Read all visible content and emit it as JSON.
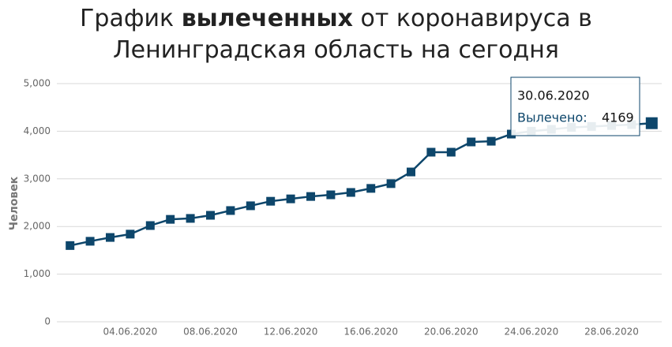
{
  "chart_data": {
    "type": "line",
    "title_parts": [
      "График",
      "вылеченных",
      "от коронавируса в",
      "Ленинградская область на сегодня"
    ],
    "y_label": "Человек",
    "categories": [
      null,
      null,
      null,
      "04.06.2020",
      null,
      null,
      null,
      "08.06.2020",
      null,
      null,
      null,
      "12.06.2020",
      null,
      null,
      null,
      "16.06.2020",
      null,
      null,
      null,
      "20.06.2020",
      null,
      null,
      null,
      "24.06.2020",
      null,
      null,
      null,
      "28.06.2020",
      null,
      null
    ],
    "series": [
      {
        "color": "#0d466b",
        "values": [
          1600,
          1690,
          1770,
          1840,
          2020,
          2150,
          2170,
          2235,
          2335,
          2435,
          2530,
          2580,
          2630,
          2665,
          2715,
          2800,
          2900,
          3145,
          3560,
          3560,
          3775,
          3790,
          3940,
          4000,
          4040,
          4080,
          4100,
          4120,
          4140,
          4169
        ]
      }
    ],
    "ylim": [
      0,
      5000
    ],
    "yticks": [
      0,
      {
        "value": 1000,
        "label": "1,000"
      },
      {
        "value": 2000,
        "label": "2,000"
      },
      {
        "value": 3000,
        "label": "3,000"
      },
      {
        "value": 4000,
        "label": "4,000"
      },
      {
        "value": 5000,
        "label": "5,000"
      }
    ],
    "grid": true,
    "tooltip": {
      "date": "30.06.2020",
      "label": "Вылечено:",
      "value": 4169
    }
  }
}
